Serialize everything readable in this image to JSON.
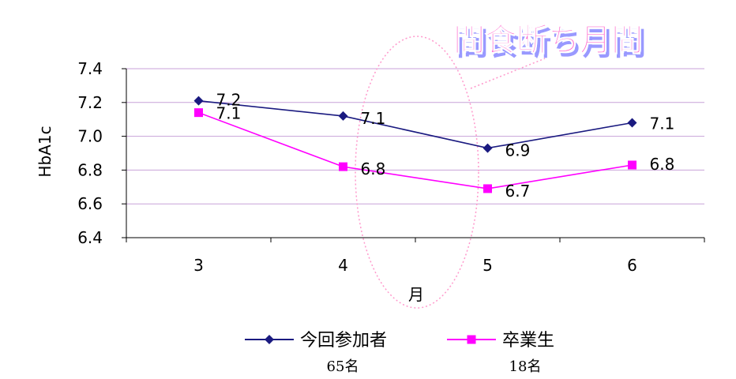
{
  "chart_data": {
    "type": "line",
    "categories": [
      "3",
      "4",
      "5",
      "6"
    ],
    "xlabel": "月",
    "ylabel": "HbA1c",
    "ylim": [
      6.4,
      7.4
    ],
    "yticks": [
      "6.4",
      "6.6",
      "6.8",
      "7.0",
      "7.2",
      "7.4"
    ],
    "grid": true,
    "legend_position": "bottom",
    "series": [
      {
        "name": "今回参加者",
        "count_label": "65名",
        "values": [
          7.21,
          7.12,
          6.93,
          7.08
        ],
        "data_labels": [
          "7.2",
          "7.1",
          "6.9",
          "7.1"
        ],
        "color": "#1a1a80",
        "marker": "diamond"
      },
      {
        "name": "卒業生",
        "count_label": "18名",
        "values": [
          7.14,
          6.82,
          6.69,
          6.83
        ],
        "data_labels": [
          "7.1",
          "6.8",
          "6.7",
          "6.8"
        ],
        "color": "#ff00ff",
        "marker": "square"
      }
    ],
    "annotation": {
      "text": "間食断ち月間",
      "fill_color": "#ff66cc",
      "shadow_color": "#9999ff",
      "highlight_color": "#ff99cc"
    },
    "gridline_color": "#c8a2d8",
    "axis_color": "#000000"
  }
}
